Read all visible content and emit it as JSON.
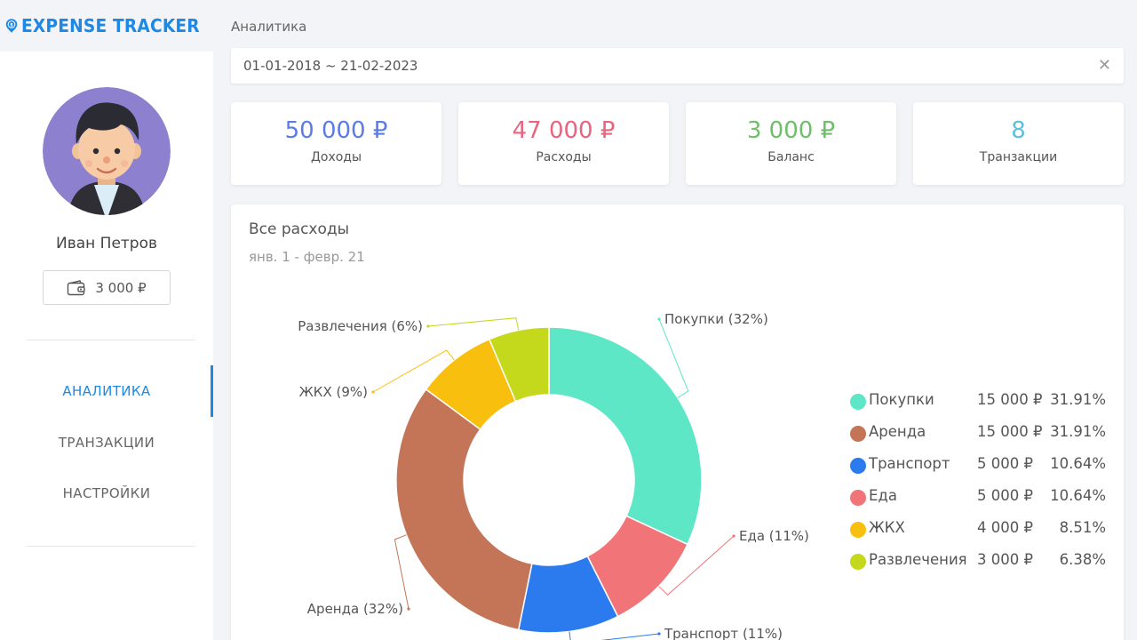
{
  "app": {
    "title": "EXPENSE TRACKER",
    "logo_icon": "dollar-pin-icon"
  },
  "user": {
    "name": "Иван Петров",
    "wallet_balance": "3 000 ₽",
    "avatar_icon": "user-avatar"
  },
  "nav": [
    {
      "label": "АНАЛИТИКА",
      "active": true
    },
    {
      "label": "ТРАНЗАКЦИИ",
      "active": false
    },
    {
      "label": "НАСТРОЙКИ",
      "active": false
    }
  ],
  "page": {
    "breadcrumb": "Аналитика"
  },
  "date_filter": {
    "value": "01-01-2018 ~ 21-02-2023",
    "clear_icon": "close-icon"
  },
  "stats": [
    {
      "value": "50 000 ₽",
      "label": "Доходы",
      "color": "#5b7be6"
    },
    {
      "value": "47 000 ₽",
      "label": "Расходы",
      "color": "#e8647f"
    },
    {
      "value": "3 000 ₽",
      "label": "Баланс",
      "color": "#6fbf6a"
    },
    {
      "value": "8",
      "label": "Транзакции",
      "color": "#5bc0e0"
    }
  ],
  "expenses_panel": {
    "title": "Все расходы",
    "subtitle": "янв. 1 - февр. 21"
  },
  "chart_data": {
    "type": "pie",
    "donut": true,
    "slices": [
      {
        "name": "Покупки",
        "value": 15000,
        "amount": "15 000 ₽",
        "percent": "31.91%",
        "label": "Покупки (32%)",
        "color": "#5ee7c6"
      },
      {
        "name": "Еда",
        "value": 5000,
        "amount": "5 000 ₽",
        "percent": "10.64%",
        "label": "Еда (11%)",
        "color": "#f07478"
      },
      {
        "name": "Транспорт",
        "value": 5000,
        "amount": "5 000 ₽",
        "percent": "10.64%",
        "label": "Транспорт (11%)",
        "color": "#2b7bef"
      },
      {
        "name": "Аренда",
        "value": 15000,
        "amount": "15 000 ₽",
        "percent": "31.91%",
        "label": "Аренда (32%)",
        "color": "#c47558"
      },
      {
        "name": "ЖКХ",
        "value": 4000,
        "amount": "4 000 ₽",
        "percent": "8.51%",
        "label": "ЖКХ (9%)",
        "color": "#f9bf0e"
      },
      {
        "name": "Развлечения",
        "value": 3000,
        "amount": "3 000 ₽",
        "percent": "6.38%",
        "label": "Развлечения (6%)",
        "color": "#c5d91c"
      }
    ],
    "legend_order": [
      "Покупки",
      "Аренда",
      "Транспорт",
      "Еда",
      "ЖКХ",
      "Развлечения"
    ],
    "legend_position": "right"
  }
}
